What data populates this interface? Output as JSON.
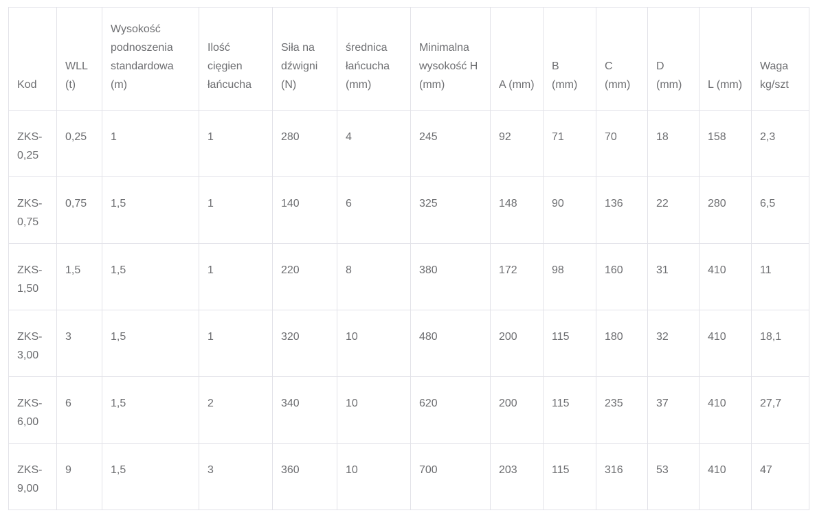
{
  "theme": {
    "background_color": "#ffffff",
    "border_color": "#e2e2e8",
    "text_color": "#6d6e71"
  },
  "table": {
    "columns": [
      {
        "label": "Kod"
      },
      {
        "label": "WLL (t)"
      },
      {
        "label": "Wysokość podnoszenia standardowa (m)"
      },
      {
        "label": "Ilość cięgien łańcucha"
      },
      {
        "label": "Siła na dźwigni (N)"
      },
      {
        "label": "średnica łańcucha (mm)"
      },
      {
        "label": "Minimalna wysokość H (mm)"
      },
      {
        "label": "A (mm)"
      },
      {
        "label": "B (mm)"
      },
      {
        "label": "C (mm)"
      },
      {
        "label": "D (mm)"
      },
      {
        "label": "L (mm)"
      },
      {
        "label": "Waga kg/szt"
      }
    ],
    "rows": [
      [
        "ZKS-0,25",
        "0,25",
        "1",
        "1",
        "280",
        "4",
        "245",
        "92",
        "71",
        "70",
        "18",
        "158",
        "2,3"
      ],
      [
        "ZKS-0,75",
        "0,75",
        "1,5",
        "1",
        "140",
        "6",
        "325",
        "148",
        "90",
        "136",
        "22",
        "280",
        "6,5"
      ],
      [
        "ZKS-1,50",
        "1,5",
        "1,5",
        "1",
        "220",
        "8",
        "380",
        "172",
        "98",
        "160",
        "31",
        "410",
        "11"
      ],
      [
        "ZKS-3,00",
        "3",
        "1,5",
        "1",
        "320",
        "10",
        "480",
        "200",
        "115",
        "180",
        "32",
        "410",
        "18,1"
      ],
      [
        "ZKS-6,00",
        "6",
        "1,5",
        "2",
        "340",
        "10",
        "620",
        "200",
        "115",
        "235",
        "37",
        "410",
        "27,7"
      ],
      [
        "ZKS-9,00",
        "9",
        "1,5",
        "3",
        "360",
        "10",
        "700",
        "203",
        "115",
        "316",
        "53",
        "410",
        "47"
      ]
    ]
  }
}
